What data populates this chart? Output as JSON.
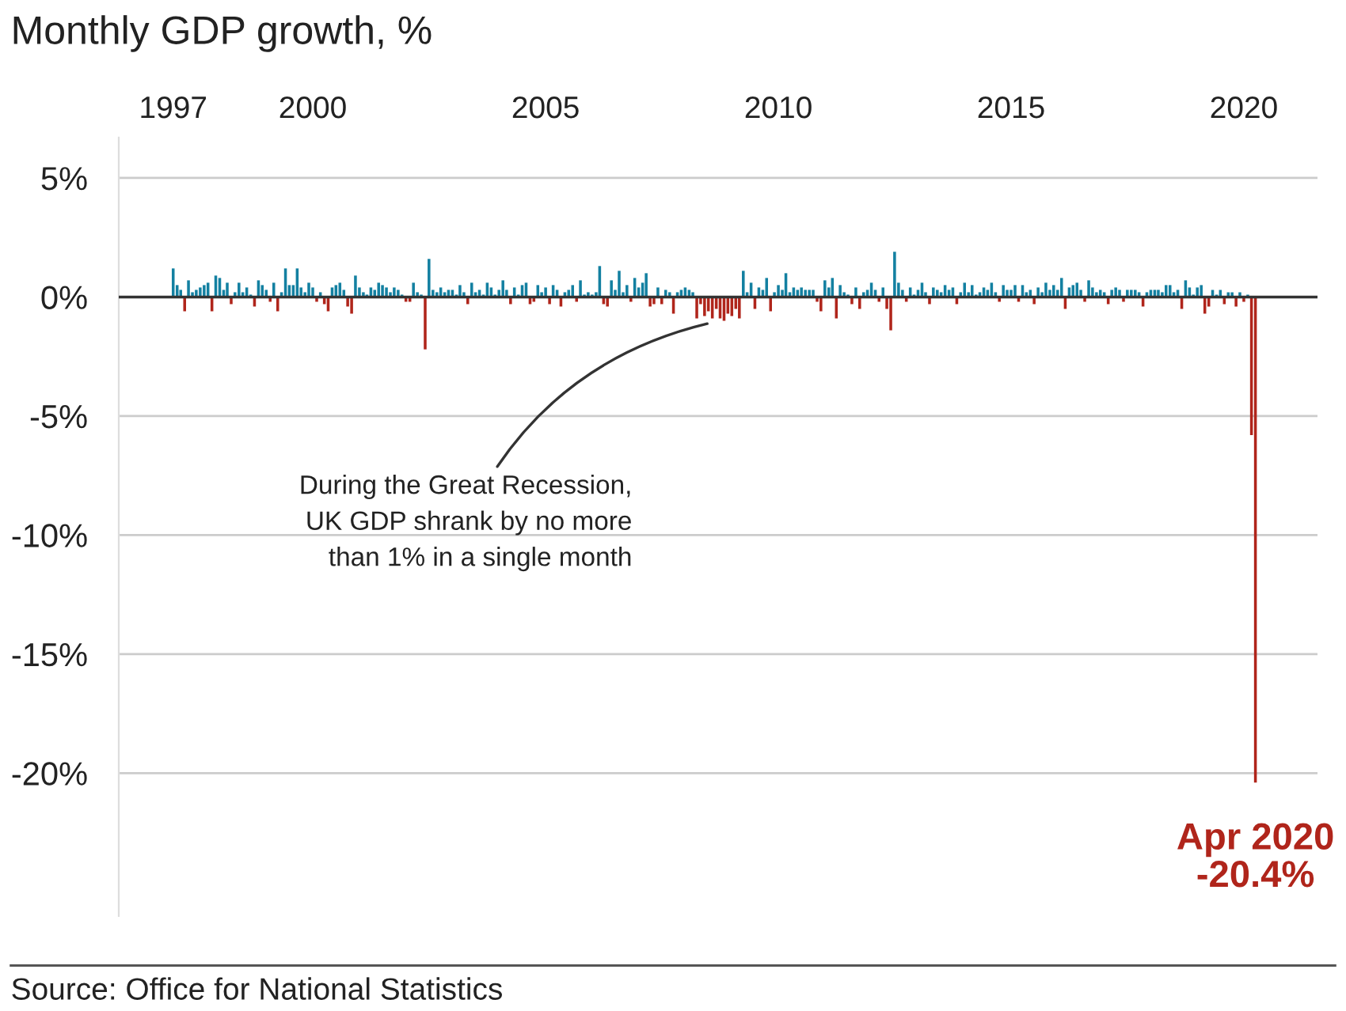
{
  "chart_data": {
    "type": "bar",
    "title": "Monthly GDP growth, %",
    "x": [
      "1997-01",
      "1997-02",
      "1997-03",
      "1997-04",
      "1997-05",
      "1997-06",
      "1997-07",
      "1997-08",
      "1997-09",
      "1997-10",
      "1997-11",
      "1997-12",
      "1998-01",
      "1998-02",
      "1998-03",
      "1998-04",
      "1998-05",
      "1998-06",
      "1998-07",
      "1998-08",
      "1998-09",
      "1998-10",
      "1998-11",
      "1998-12",
      "1999-01",
      "1999-02",
      "1999-03",
      "1999-04",
      "1999-05",
      "1999-06",
      "1999-07",
      "1999-08",
      "1999-09",
      "1999-10",
      "1999-11",
      "1999-12",
      "2000-01",
      "2000-02",
      "2000-03",
      "2000-04",
      "2000-05",
      "2000-06",
      "2000-07",
      "2000-08",
      "2000-09",
      "2000-10",
      "2000-11",
      "2000-12",
      "2001-01",
      "2001-02",
      "2001-03",
      "2001-04",
      "2001-05",
      "2001-06",
      "2001-07",
      "2001-08",
      "2001-09",
      "2001-10",
      "2001-11",
      "2001-12",
      "2002-01",
      "2002-02",
      "2002-03",
      "2002-04",
      "2002-05",
      "2002-06",
      "2002-07",
      "2002-08",
      "2002-09",
      "2002-10",
      "2002-11",
      "2002-12",
      "2003-01",
      "2003-02",
      "2003-03",
      "2003-04",
      "2003-05",
      "2003-06",
      "2003-07",
      "2003-08",
      "2003-09",
      "2003-10",
      "2003-11",
      "2003-12",
      "2004-01",
      "2004-02",
      "2004-03",
      "2004-04",
      "2004-05",
      "2004-06",
      "2004-07",
      "2004-08",
      "2004-09",
      "2004-10",
      "2004-11",
      "2004-12",
      "2005-01",
      "2005-02",
      "2005-03",
      "2005-04",
      "2005-05",
      "2005-06",
      "2005-07",
      "2005-08",
      "2005-09",
      "2005-10",
      "2005-11",
      "2005-12",
      "2006-01",
      "2006-02",
      "2006-03",
      "2006-04",
      "2006-05",
      "2006-06",
      "2006-07",
      "2006-08",
      "2006-09",
      "2006-10",
      "2006-11",
      "2006-12",
      "2007-01",
      "2007-02",
      "2007-03",
      "2007-04",
      "2007-05",
      "2007-06",
      "2007-07",
      "2007-08",
      "2007-09",
      "2007-10",
      "2007-11",
      "2007-12",
      "2008-01",
      "2008-02",
      "2008-03",
      "2008-04",
      "2008-05",
      "2008-06",
      "2008-07",
      "2008-08",
      "2008-09",
      "2008-10",
      "2008-11",
      "2008-12",
      "2009-01",
      "2009-02",
      "2009-03",
      "2009-04",
      "2009-05",
      "2009-06",
      "2009-07",
      "2009-08",
      "2009-09",
      "2009-10",
      "2009-11",
      "2009-12",
      "2010-01",
      "2010-02",
      "2010-03",
      "2010-04",
      "2010-05",
      "2010-06",
      "2010-07",
      "2010-08",
      "2010-09",
      "2010-10",
      "2010-11",
      "2010-12",
      "2011-01",
      "2011-02",
      "2011-03",
      "2011-04",
      "2011-05",
      "2011-06",
      "2011-07",
      "2011-08",
      "2011-09",
      "2011-10",
      "2011-11",
      "2011-12",
      "2012-01",
      "2012-02",
      "2012-03",
      "2012-04",
      "2012-05",
      "2012-06",
      "2012-07",
      "2012-08",
      "2012-09",
      "2012-10",
      "2012-11",
      "2012-12",
      "2013-01",
      "2013-02",
      "2013-03",
      "2013-04",
      "2013-05",
      "2013-06",
      "2013-07",
      "2013-08",
      "2013-09",
      "2013-10",
      "2013-11",
      "2013-12",
      "2014-01",
      "2014-02",
      "2014-03",
      "2014-04",
      "2014-05",
      "2014-06",
      "2014-07",
      "2014-08",
      "2014-09",
      "2014-10",
      "2014-11",
      "2014-12",
      "2015-01",
      "2015-02",
      "2015-03",
      "2015-04",
      "2015-05",
      "2015-06",
      "2015-07",
      "2015-08",
      "2015-09",
      "2015-10",
      "2015-11",
      "2015-12",
      "2016-01",
      "2016-02",
      "2016-03",
      "2016-04",
      "2016-05",
      "2016-06",
      "2016-07",
      "2016-08",
      "2016-09",
      "2016-10",
      "2016-11",
      "2016-12",
      "2017-01",
      "2017-02",
      "2017-03",
      "2017-04",
      "2017-05",
      "2017-06",
      "2017-07",
      "2017-08",
      "2017-09",
      "2017-10",
      "2017-11",
      "2017-12",
      "2018-01",
      "2018-02",
      "2018-03",
      "2018-04",
      "2018-05",
      "2018-06",
      "2018-07",
      "2018-08",
      "2018-09",
      "2018-10",
      "2018-11",
      "2018-12",
      "2019-01",
      "2019-02",
      "2019-03",
      "2019-04",
      "2019-05",
      "2019-06",
      "2019-07",
      "2019-08",
      "2019-09",
      "2019-10",
      "2019-11",
      "2019-12",
      "2020-01",
      "2020-02",
      "2020-03",
      "2020-04"
    ],
    "values": [
      1.2,
      0.5,
      0.3,
      -0.6,
      0.7,
      0.2,
      0.3,
      0.4,
      0.5,
      0.6,
      -0.6,
      0.9,
      0.8,
      0.3,
      0.6,
      -0.3,
      0.2,
      0.6,
      0.2,
      0.4,
      0.1,
      -0.4,
      0.7,
      0.5,
      0.3,
      -0.2,
      0.6,
      -0.6,
      0.2,
      1.2,
      0.5,
      0.5,
      1.2,
      0.4,
      0.2,
      0.6,
      0.4,
      -0.2,
      0.2,
      -0.3,
      -0.6,
      0.4,
      0.5,
      0.6,
      0.3,
      -0.4,
      -0.7,
      0.9,
      0.4,
      0.2,
      0.1,
      0.4,
      0.3,
      0.6,
      0.5,
      0.4,
      0.2,
      0.4,
      0.3,
      0.1,
      -0.2,
      -0.2,
      0.6,
      0.2,
      0.1,
      -2.2,
      1.6,
      0.3,
      0.2,
      0.4,
      0.2,
      0.3,
      0.3,
      0.1,
      0.5,
      0.2,
      -0.3,
      0.6,
      0.2,
      0.3,
      0.1,
      0.6,
      0.4,
      0.1,
      0.3,
      0.7,
      0.3,
      -0.3,
      0.4,
      0.1,
      0.5,
      0.6,
      -0.3,
      -0.2,
      0.5,
      0.2,
      0.4,
      -0.3,
      0.5,
      0.3,
      -0.4,
      0.2,
      0.3,
      0.5,
      -0.2,
      0.7,
      0.1,
      0.2,
      0.1,
      0.2,
      1.3,
      -0.3,
      -0.4,
      0.7,
      0.3,
      1.1,
      0.2,
      0.5,
      -0.2,
      0.8,
      0.4,
      0.6,
      1.0,
      -0.4,
      -0.3,
      0.4,
      -0.3,
      0.3,
      0.2,
      -0.7,
      0.2,
      0.3,
      0.4,
      0.3,
      0.2,
      -0.9,
      -0.3,
      -0.8,
      -0.6,
      -0.9,
      -0.5,
      -0.9,
      -1.0,
      -0.7,
      -0.8,
      -0.5,
      -0.9,
      1.1,
      0.2,
      0.6,
      -0.5,
      0.4,
      0.3,
      0.8,
      -0.6,
      0.2,
      0.5,
      0.3,
      1.0,
      0.2,
      0.4,
      0.3,
      0.4,
      0.3,
      0.3,
      0.3,
      -0.2,
      -0.6,
      0.7,
      0.4,
      0.8,
      -0.9,
      0.5,
      0.2,
      0.1,
      -0.3,
      0.4,
      -0.5,
      0.2,
      0.3,
      0.6,
      0.3,
      -0.2,
      0.4,
      -0.5,
      -1.4,
      1.9,
      0.6,
      0.3,
      -0.2,
      0.4,
      0.1,
      0.3,
      0.6,
      0.2,
      -0.3,
      0.4,
      0.3,
      0.2,
      0.5,
      0.3,
      0.4,
      -0.3,
      0.2,
      0.6,
      0.2,
      0.5,
      0.1,
      0.2,
      0.4,
      0.3,
      0.6,
      0.2,
      -0.2,
      0.5,
      0.3,
      0.3,
      0.5,
      -0.2,
      0.5,
      0.2,
      0.3,
      -0.3,
      0.4,
      0.2,
      0.6,
      0.3,
      0.5,
      0.3,
      0.8,
      -0.5,
      0.4,
      0.5,
      0.6,
      0.3,
      -0.2,
      0.7,
      0.4,
      0.2,
      0.3,
      0.2,
      -0.3,
      0.3,
      0.4,
      0.3,
      -0.2,
      0.3,
      0.3,
      0.3,
      0.2,
      -0.4,
      0.2,
      0.3,
      0.3,
      0.3,
      0.2,
      0.5,
      0.5,
      0.2,
      0.3,
      -0.5,
      0.7,
      0.4,
      0.1,
      0.4,
      0.5,
      -0.7,
      -0.4,
      0.3,
      0.1,
      0.3,
      -0.3,
      0.2,
      0.2,
      -0.4,
      0.2,
      -0.2,
      0.1,
      -5.8,
      -20.4
    ],
    "colors": [
      "#1380a1",
      "#1380a1",
      "#1380a1",
      "#b0251b",
      "#1380a1",
      "#1380a1",
      "#1380a1",
      "#1380a1",
      "#1380a1",
      "#1380a1",
      "#b0251b",
      "#1380a1",
      "#1380a1",
      "#1380a1",
      "#1380a1",
      "#b0251b",
      "#1380a1",
      "#1380a1",
      "#1380a1",
      "#1380a1",
      "#1380a1",
      "#b0251b",
      "#1380a1",
      "#1380a1",
      "#1380a1",
      "#b0251b",
      "#1380a1",
      "#b0251b",
      "#1380a1",
      "#1380a1",
      "#1380a1",
      "#1380a1",
      "#1380a1",
      "#1380a1",
      "#1380a1",
      "#1380a1",
      "#1380a1",
      "#b0251b",
      "#1380a1",
      "#b0251b",
      "#b0251b",
      "#1380a1",
      "#1380a1",
      "#1380a1",
      "#1380a1",
      "#b0251b",
      "#b0251b",
      "#1380a1",
      "#1380a1",
      "#1380a1",
      "#1380a1",
      "#1380a1",
      "#1380a1",
      "#1380a1",
      "#1380a1",
      "#1380a1",
      "#1380a1",
      "#1380a1",
      "#1380a1",
      "#1380a1",
      "#b0251b",
      "#b0251b",
      "#1380a1",
      "#1380a1",
      "#1380a1",
      "#b0251b",
      "#1380a1",
      "#1380a1",
      "#1380a1",
      "#1380a1",
      "#1380a1",
      "#1380a1",
      "#1380a1",
      "#1380a1",
      "#1380a1",
      "#1380a1",
      "#b0251b",
      "#1380a1",
      "#1380a1",
      "#1380a1",
      "#1380a1",
      "#1380a1",
      "#1380a1",
      "#1380a1",
      "#1380a1",
      "#1380a1",
      "#1380a1",
      "#b0251b",
      "#1380a1",
      "#1380a1",
      "#1380a1",
      "#1380a1",
      "#b0251b",
      "#b0251b",
      "#1380a1",
      "#1380a1",
      "#1380a1",
      "#b0251b",
      "#1380a1",
      "#1380a1",
      "#b0251b",
      "#1380a1",
      "#1380a1",
      "#1380a1",
      "#b0251b",
      "#1380a1",
      "#1380a1",
      "#1380a1",
      "#1380a1",
      "#1380a1",
      "#1380a1",
      "#b0251b",
      "#b0251b",
      "#1380a1",
      "#1380a1",
      "#1380a1",
      "#1380a1",
      "#1380a1",
      "#b0251b",
      "#1380a1",
      "#1380a1",
      "#1380a1",
      "#1380a1",
      "#b0251b",
      "#b0251b",
      "#1380a1",
      "#b0251b",
      "#1380a1",
      "#1380a1",
      "#b0251b",
      "#1380a1",
      "#1380a1",
      "#1380a1",
      "#1380a1",
      "#1380a1",
      "#b0251b",
      "#b0251b",
      "#b0251b",
      "#b0251b",
      "#b0251b",
      "#b0251b",
      "#b0251b",
      "#b0251b",
      "#b0251b",
      "#b0251b",
      "#b0251b",
      "#b0251b",
      "#1380a1",
      "#1380a1",
      "#1380a1",
      "#b0251b",
      "#1380a1",
      "#1380a1",
      "#1380a1",
      "#b0251b",
      "#1380a1",
      "#1380a1",
      "#1380a1",
      "#1380a1",
      "#1380a1",
      "#1380a1",
      "#1380a1",
      "#1380a1",
      "#1380a1",
      "#1380a1",
      "#1380a1",
      "#b0251b",
      "#b0251b",
      "#1380a1",
      "#1380a1",
      "#1380a1",
      "#b0251b",
      "#1380a1",
      "#1380a1",
      "#1380a1",
      "#b0251b",
      "#1380a1",
      "#b0251b",
      "#1380a1",
      "#1380a1",
      "#1380a1",
      "#1380a1",
      "#b0251b",
      "#1380a1",
      "#b0251b",
      "#b0251b",
      "#1380a1",
      "#1380a1",
      "#1380a1",
      "#b0251b",
      "#1380a1",
      "#1380a1",
      "#1380a1",
      "#1380a1",
      "#1380a1",
      "#b0251b",
      "#1380a1",
      "#1380a1",
      "#1380a1",
      "#1380a1",
      "#1380a1",
      "#1380a1",
      "#b0251b",
      "#1380a1",
      "#1380a1",
      "#1380a1",
      "#1380a1",
      "#1380a1",
      "#1380a1",
      "#1380a1",
      "#1380a1",
      "#1380a1",
      "#1380a1",
      "#b0251b",
      "#1380a1",
      "#1380a1",
      "#1380a1",
      "#1380a1",
      "#b0251b",
      "#1380a1",
      "#1380a1",
      "#1380a1",
      "#b0251b",
      "#1380a1",
      "#1380a1",
      "#1380a1",
      "#1380a1",
      "#1380a1",
      "#1380a1",
      "#1380a1",
      "#b0251b",
      "#1380a1",
      "#1380a1",
      "#1380a1",
      "#1380a1",
      "#b0251b",
      "#1380a1",
      "#1380a1",
      "#1380a1",
      "#1380a1",
      "#1380a1",
      "#b0251b",
      "#1380a1",
      "#1380a1",
      "#1380a1",
      "#b0251b",
      "#1380a1",
      "#1380a1",
      "#1380a1",
      "#1380a1",
      "#b0251b",
      "#1380a1",
      "#1380a1",
      "#1380a1",
      "#1380a1",
      "#1380a1",
      "#1380a1",
      "#1380a1",
      "#1380a1",
      "#1380a1",
      "#b0251b",
      "#1380a1",
      "#1380a1",
      "#1380a1",
      "#1380a1",
      "#1380a1",
      "#b0251b",
      "#b0251b",
      "#1380a1",
      "#1380a1",
      "#1380a1",
      "#b0251b",
      "#1380a1",
      "#1380a1",
      "#b0251b",
      "#1380a1",
      "#b0251b",
      "#1380a1",
      "#b0251b",
      "#b0251b"
    ],
    "xlim": [
      "1995-11",
      "2021-08"
    ],
    "xticks": [
      "1997",
      "2000",
      "2005",
      "2010",
      "2015",
      "2020"
    ],
    "ylim": [
      -26,
      6.7
    ],
    "yticks": [
      {
        "value": 5,
        "label": "5%"
      },
      {
        "value": 0,
        "label": "0%"
      },
      {
        "value": -5,
        "label": "-5%"
      },
      {
        "value": -10,
        "label": "-10%"
      },
      {
        "value": -15,
        "label": "-15%"
      },
      {
        "value": -20,
        "label": "-20%"
      }
    ],
    "grid": "y",
    "ref_lines": [
      {
        "axis": "y",
        "value": 0,
        "color": "#333333"
      }
    ],
    "annotations": [
      {
        "text": "During the Great Recession,\nUK GDP shrank by no more\nthan 1% in a single month",
        "x": "2008-10",
        "y": -1.0
      },
      {
        "text": "Apr 2020\n-20.4%",
        "x": "2020-04",
        "y": -20.4
      },
      "Source: Office for National Statistics"
    ]
  }
}
